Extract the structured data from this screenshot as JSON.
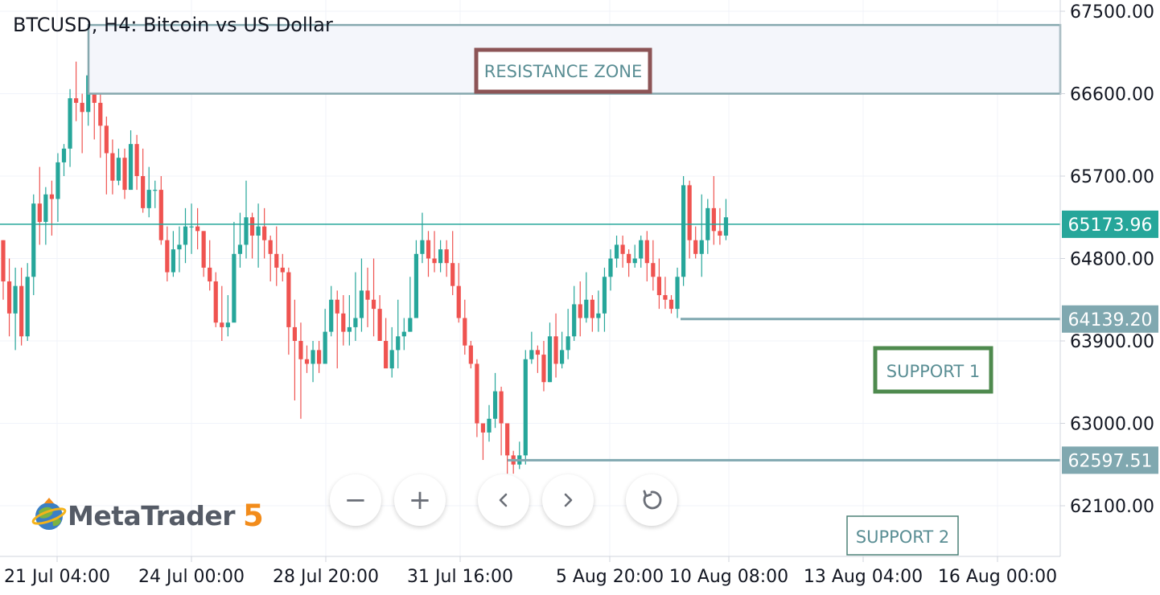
{
  "title": "BTCUSD, H4: Bitcoin vs US Dollar",
  "brand": {
    "name": "MetaTrader",
    "version": "5"
  },
  "controls": [
    {
      "name": "zoom-out-button",
      "glyph": "−"
    },
    {
      "name": "zoom-in-button",
      "glyph": "+"
    },
    {
      "name": "scroll-left-button",
      "icon": "chevron-left-icon"
    },
    {
      "name": "scroll-right-button",
      "icon": "chevron-right-icon"
    },
    {
      "name": "reset-button",
      "icon": "refresh-icon"
    }
  ],
  "colors": {
    "up": "#26a69a",
    "down": "#ef5350",
    "grid": "#f0f3fa",
    "axis": "#d1d4dc",
    "current_line": "#26a69a",
    "level": "#80a8b0",
    "zone_fill": "#f4f6fb",
    "resistance_border": "#8c5456",
    "support1_border": "#4e8a4e",
    "support2_border": "#4b8077",
    "label_text": "#5a8e94"
  },
  "chart_data": {
    "type": "candlestick",
    "symbol": "BTCUSD",
    "timeframe": "H4",
    "y_ticks": [
      67500,
      66600,
      65700,
      64800,
      63900,
      63000,
      62100
    ],
    "y_tick_labels": [
      "67500.00",
      "66600.00",
      "65700.00",
      "64800.00",
      "63900.00",
      "63000.00",
      "62100.00"
    ],
    "x_tick_labels": [
      "21 Jul 04:00",
      "24 Jul 00:00",
      "28 Jul 20:00",
      "31 Jul 16:00",
      "5 Aug 20:00",
      "10 Aug 08:00",
      "13 Aug 04:00",
      "16 Aug 00:00"
    ],
    "ylim": [
      61600,
      67600
    ],
    "current_price": "65173.96",
    "levels": [
      {
        "label": "64139.20",
        "value": 64139.2
      },
      {
        "label": "62597.51",
        "value": 62597.51
      }
    ],
    "resistance_zone": {
      "label": "RESISTANCE ZONE",
      "low": 66600,
      "high": 67350
    },
    "annotations": [
      "SUPPORT 1",
      "SUPPORT 2"
    ],
    "candles": [
      [
        65000,
        64550,
        65000,
        64350
      ],
      [
        64550,
        64200,
        64800,
        63950
      ],
      [
        64200,
        64500,
        64700,
        63800
      ],
      [
        64500,
        63950,
        64700,
        63850
      ],
      [
        63950,
        64600,
        64750,
        63900
      ],
      [
        64600,
        65400,
        65500,
        64400
      ],
      [
        65400,
        65200,
        65800,
        64950
      ],
      [
        65200,
        65500,
        65580,
        64950
      ],
      [
        65500,
        65450,
        65650,
        65050
      ],
      [
        65450,
        65850,
        65950,
        65200
      ],
      [
        65850,
        66000,
        66050,
        65700
      ],
      [
        66000,
        66550,
        66650,
        65800
      ],
      [
        66550,
        66500,
        66950,
        66300
      ],
      [
        66500,
        66400,
        66600,
        65950
      ],
      [
        66400,
        66800,
        66900,
        66250
      ],
      [
        66800,
        66500,
        66900,
        66100
      ],
      [
        66500,
        66250,
        66650,
        65900
      ],
      [
        66250,
        65950,
        66350,
        65500
      ],
      [
        65950,
        65650,
        66100,
        65500
      ],
      [
        65650,
        65900,
        66000,
        65600
      ],
      [
        65900,
        65550,
        66000,
        65450
      ],
      [
        65550,
        66050,
        66200,
        65550
      ],
      [
        66050,
        65700,
        66150,
        65550
      ],
      [
        65700,
        65350,
        66000,
        65300
      ],
      [
        65350,
        65550,
        65800,
        65250
      ],
      [
        65550,
        65550,
        65650,
        65350
      ],
      [
        65550,
        65000,
        65700,
        64950
      ],
      [
        65000,
        64650,
        65150,
        64550
      ],
      [
        64650,
        64900,
        65100,
        64600
      ],
      [
        64900,
        64950,
        65150,
        64650
      ],
      [
        64950,
        65150,
        65350,
        64750
      ],
      [
        65150,
        65150,
        65400,
        64850
      ],
      [
        65150,
        65100,
        65350,
        64900
      ],
      [
        65100,
        64700,
        65100,
        64600
      ],
      [
        64700,
        64550,
        65000,
        64450
      ],
      [
        64550,
        64100,
        64650,
        64050
      ],
      [
        64100,
        64050,
        64500,
        63900
      ],
      [
        64050,
        64100,
        64400,
        63950
      ],
      [
        64100,
        64850,
        65200,
        64350
      ],
      [
        64850,
        64950,
        65300,
        64700
      ],
      [
        64950,
        65250,
        65650,
        64800
      ],
      [
        65250,
        65050,
        65300,
        64800
      ],
      [
        65050,
        65150,
        65400,
        64700
      ],
      [
        65150,
        65000,
        65350,
        64800
      ],
      [
        65000,
        64850,
        65050,
        64550
      ],
      [
        64850,
        64700,
        65150,
        64500
      ],
      [
        64700,
        64650,
        64850,
        64550
      ],
      [
        64650,
        64050,
        64700,
        63750
      ],
      [
        64050,
        63900,
        64350,
        63250
      ],
      [
        63900,
        63700,
        64100,
        63050
      ],
      [
        63700,
        63650,
        63850,
        63550
      ],
      [
        63650,
        63800,
        63900,
        63450
      ],
      [
        63800,
        63650,
        63900,
        63550
      ],
      [
        63650,
        64000,
        64250,
        63700
      ],
      [
        64000,
        64350,
        64500,
        63950
      ],
      [
        64350,
        64200,
        64450,
        63600
      ],
      [
        64200,
        64000,
        64400,
        63850
      ],
      [
        64000,
        64050,
        64400,
        63850
      ],
      [
        64050,
        64150,
        64650,
        63900
      ],
      [
        64150,
        64450,
        64800,
        64000
      ],
      [
        64450,
        64350,
        64700,
        64050
      ],
      [
        64350,
        64250,
        64800,
        63950
      ],
      [
        64250,
        63900,
        64400,
        63900
      ],
      [
        63900,
        63600,
        64150,
        63650
      ],
      [
        63600,
        63800,
        64050,
        63500
      ],
      [
        63800,
        63950,
        64350,
        63600
      ],
      [
        63950,
        64000,
        64150,
        63800
      ],
      [
        64000,
        64150,
        64600,
        64000
      ],
      [
        64150,
        64850,
        65000,
        64150
      ],
      [
        64850,
        65000,
        65300,
        64750
      ],
      [
        65000,
        64800,
        65100,
        64600
      ],
      [
        64800,
        64750,
        65100,
        64650
      ],
      [
        64750,
        64900,
        65000,
        64650
      ],
      [
        64900,
        64750,
        65000,
        64600
      ],
      [
        64750,
        64500,
        65100,
        64400
      ],
      [
        64500,
        64150,
        64750,
        64100
      ],
      [
        64150,
        63850,
        64350,
        63750
      ],
      [
        63850,
        63650,
        63900,
        63600
      ],
      [
        63650,
        63000,
        63700,
        62850
      ],
      [
        63000,
        62900,
        63000,
        62600
      ],
      [
        62900,
        63050,
        63200,
        62800
      ],
      [
        63050,
        63350,
        63550,
        62950
      ],
      [
        63350,
        63000,
        63400,
        62650
      ],
      [
        63000,
        62650,
        63000,
        62450
      ],
      [
        62650,
        62550,
        62700,
        62450
      ],
      [
        62550,
        62650,
        62800,
        62500
      ],
      [
        62650,
        63700,
        63800,
        62550
      ],
      [
        63700,
        63800,
        64000,
        63650
      ],
      [
        63800,
        63750,
        63850,
        63550
      ],
      [
        63750,
        63450,
        63900,
        63350
      ],
      [
        63450,
        63950,
        64100,
        63450
      ],
      [
        63950,
        63650,
        64200,
        63500
      ],
      [
        63650,
        63800,
        64000,
        63600
      ],
      [
        63800,
        63950,
        64250,
        63700
      ],
      [
        63950,
        64300,
        64500,
        63900
      ],
      [
        64300,
        64150,
        64550,
        63950
      ],
      [
        64150,
        64350,
        64650,
        64100
      ],
      [
        64350,
        64150,
        64400,
        64000
      ],
      [
        64150,
        64200,
        64450,
        64000
      ],
      [
        64200,
        64600,
        64700,
        64000
      ],
      [
        64600,
        64800,
        64900,
        64450
      ],
      [
        64800,
        64950,
        65050,
        64700
      ],
      [
        64950,
        64850,
        65050,
        64700
      ],
      [
        64850,
        64750,
        64900,
        64600
      ],
      [
        64750,
        64800,
        64950,
        64700
      ],
      [
        64800,
        65000,
        65050,
        64700
      ],
      [
        65000,
        64750,
        65100,
        64550
      ],
      [
        64750,
        64600,
        65000,
        64450
      ],
      [
        64600,
        64400,
        64800,
        64250
      ],
      [
        64400,
        64350,
        64600,
        64250
      ],
      [
        64350,
        64250,
        64400,
        64200
      ],
      [
        64250,
        64600,
        64700,
        64150
      ],
      [
        64600,
        65600,
        65700,
        64500
      ],
      [
        65600,
        65000,
        65650,
        64800
      ],
      [
        65000,
        64850,
        65150,
        64800
      ],
      [
        64850,
        65000,
        65500,
        64600
      ],
      [
        65000,
        65350,
        65450,
        64850
      ],
      [
        65350,
        65100,
        65700,
        64950
      ],
      [
        65100,
        65050,
        65350,
        64950
      ],
      [
        65050,
        65250,
        65450,
        65000
      ]
    ]
  }
}
